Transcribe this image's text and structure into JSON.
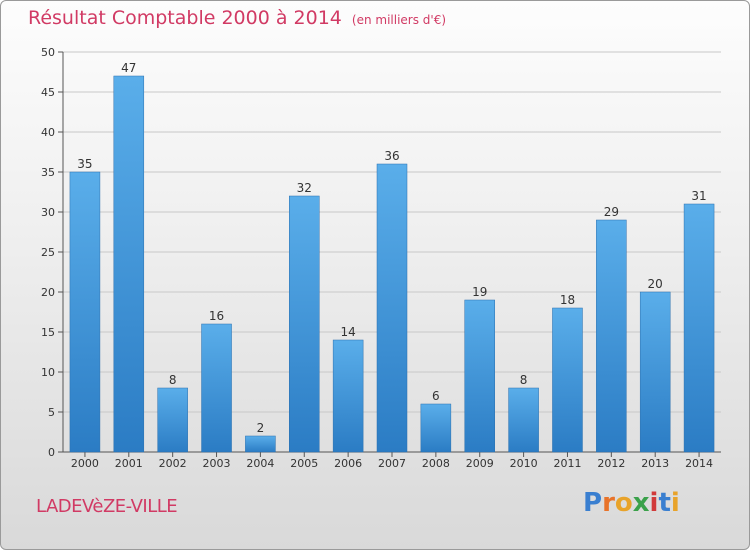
{
  "chart_data": {
    "type": "bar",
    "title": "Résultat Comptable 2000 à 2014",
    "subtitle": "(en milliers d'€)",
    "categories": [
      "2000",
      "2001",
      "2002",
      "2003",
      "2004",
      "2005",
      "2006",
      "2007",
      "2008",
      "2009",
      "2010",
      "2011",
      "2012",
      "2013",
      "2014"
    ],
    "values": [
      35,
      47,
      8,
      16,
      2,
      32,
      14,
      36,
      6,
      19,
      8,
      18,
      29,
      20,
      31
    ],
    "ylim": [
      0,
      50
    ],
    "yticks": [
      0,
      5,
      10,
      15,
      20,
      25,
      30,
      35,
      40,
      45,
      50
    ],
    "xlabel": "",
    "ylabel": "",
    "grid": true,
    "bar_color": "#3a8fd8"
  },
  "commune": "LADEVèZE-VILLE",
  "logo": {
    "letters": [
      "P",
      "r",
      "o",
      "x",
      "i",
      "t",
      "i"
    ],
    "colors": [
      "#3a7fd0",
      "#e8732a",
      "#e8a32a",
      "#3aa14a",
      "#d13a3a",
      "#3a7fd0",
      "#e8a32a"
    ]
  },
  "colors": {
    "accent": "#d13a64"
  }
}
